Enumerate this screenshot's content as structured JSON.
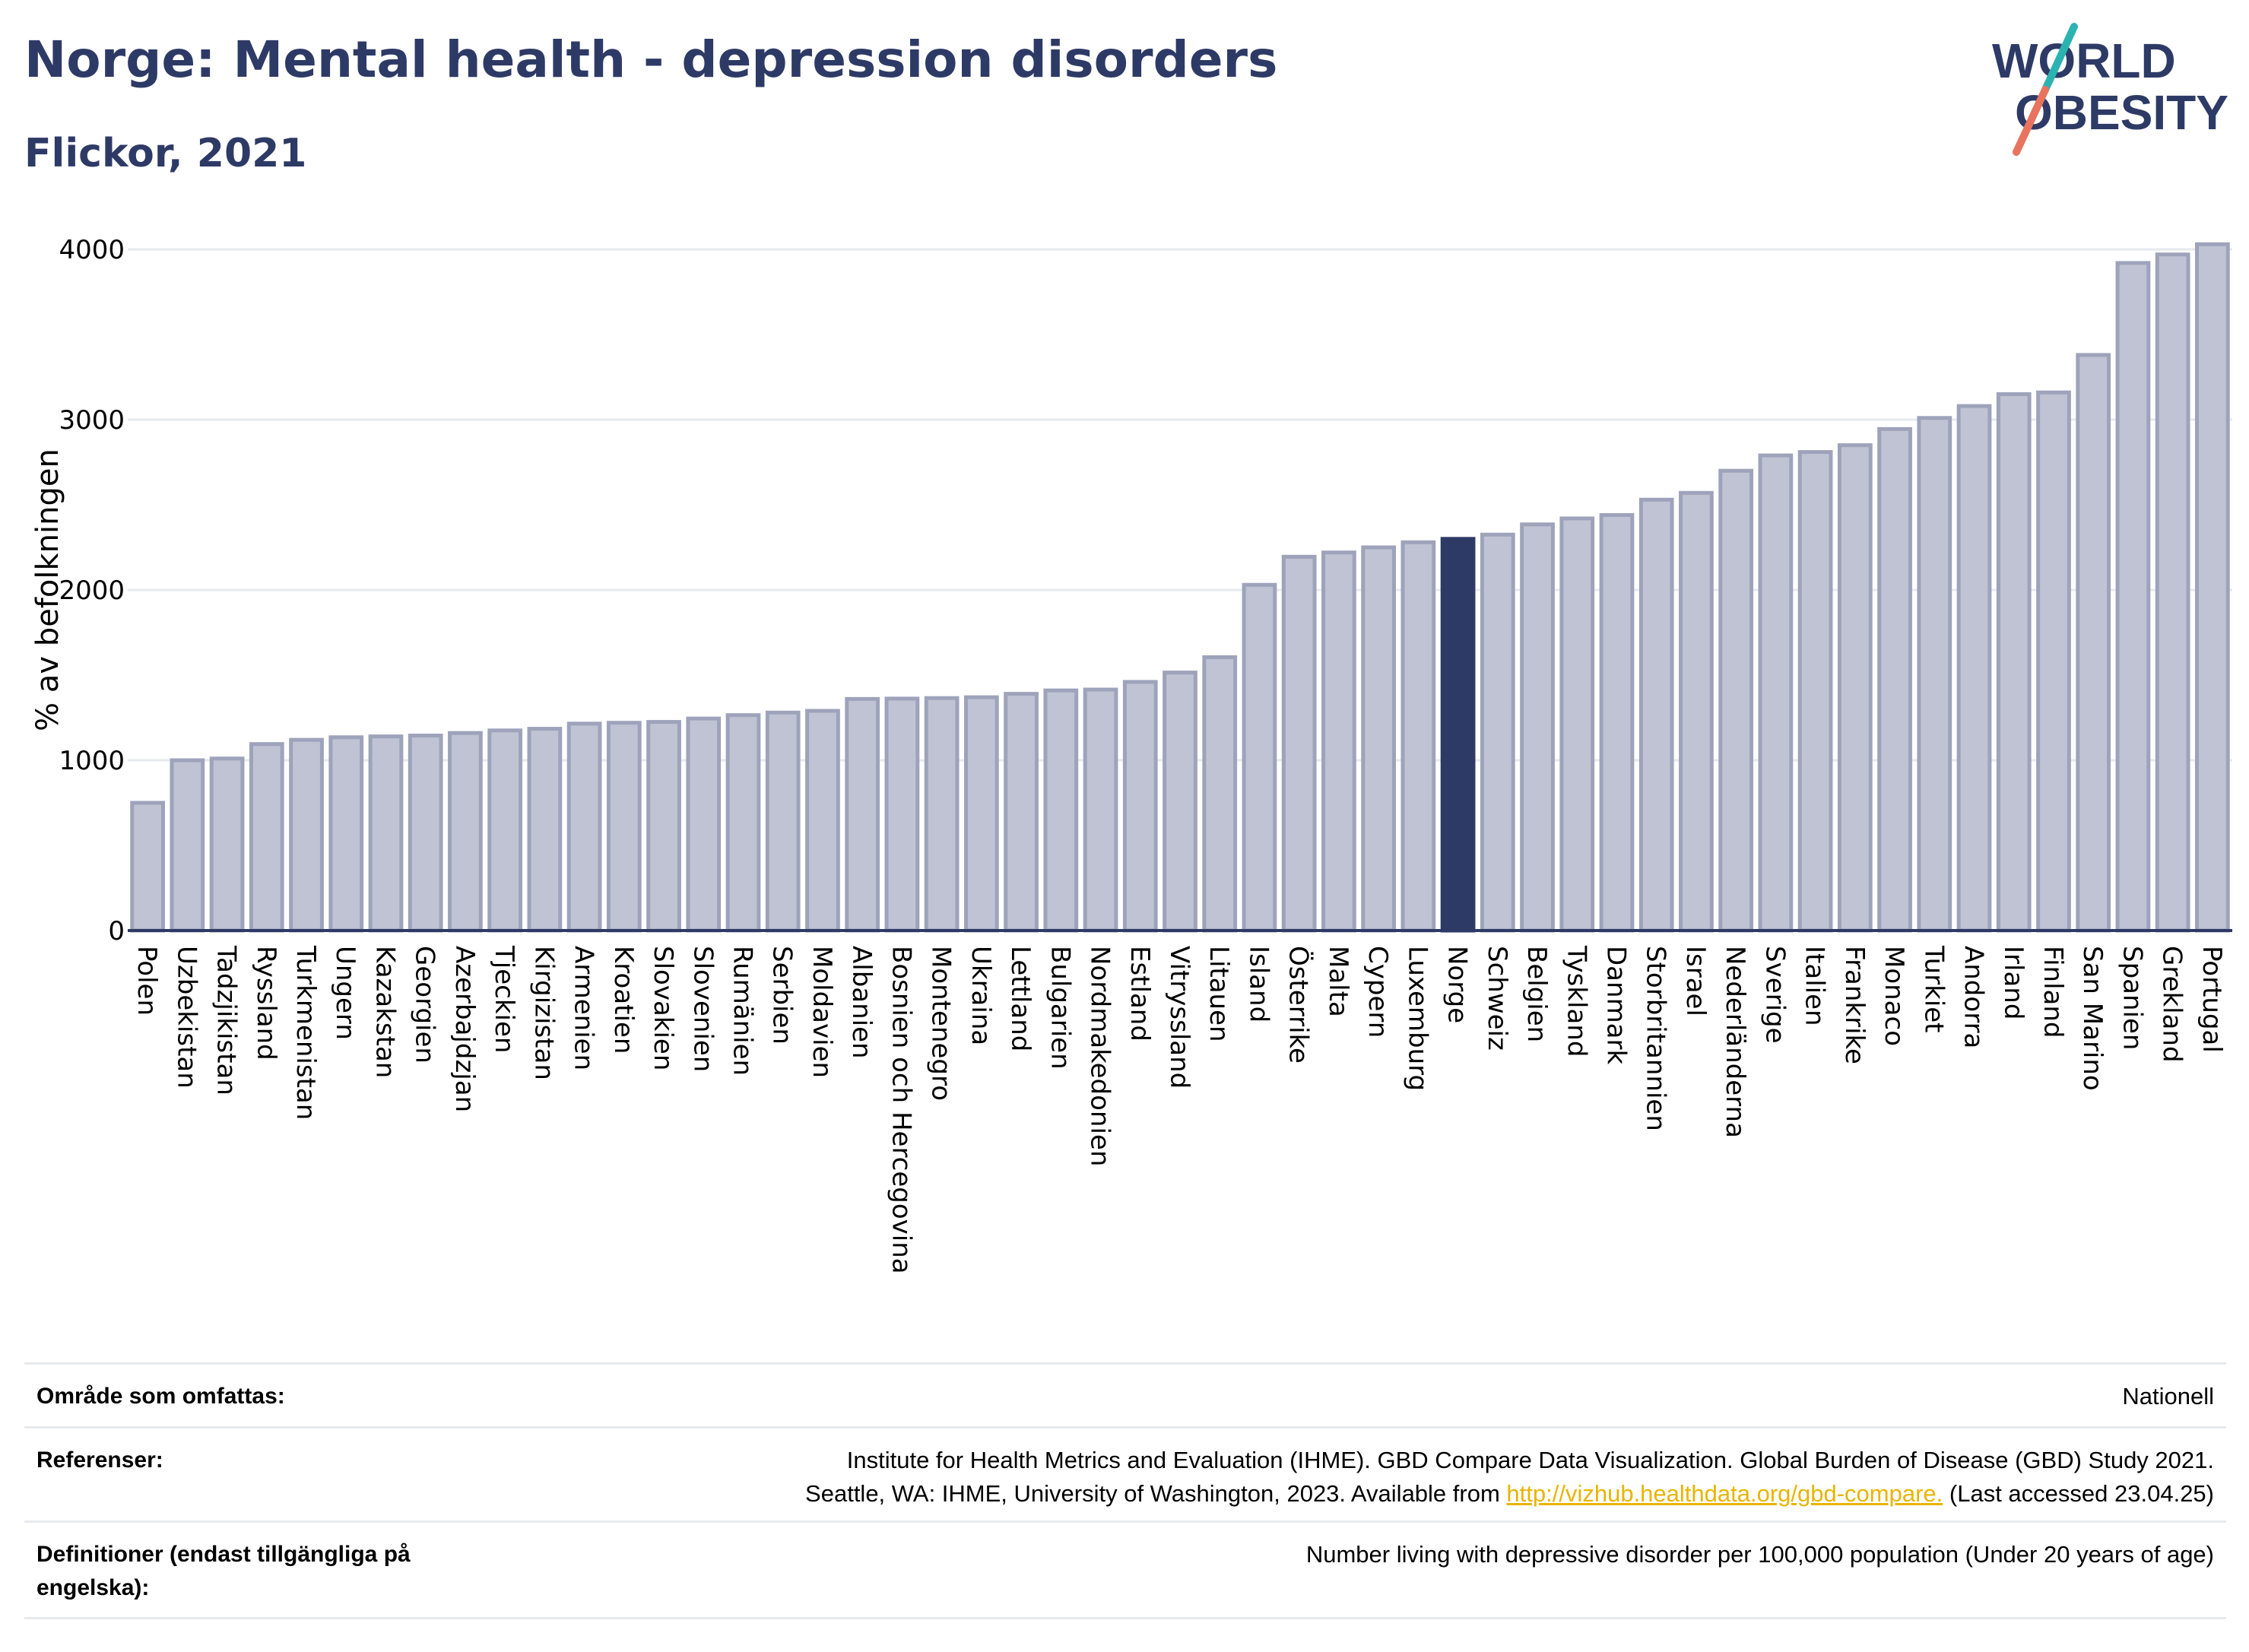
{
  "header": {
    "title": "Norge: Mental health - depression disorders",
    "subtitle": "Flickor, 2021",
    "logo_line1": "WORLD",
    "logo_line2": "OBESITY"
  },
  "colors": {
    "title": "#2e3a66",
    "bar": "#bfc3d3",
    "bar_stroke": "#9ea3bb",
    "highlight": "#2e3a66",
    "grid": "#e6eaee",
    "link": "#e9b400",
    "logo_teal": "#2bb3b1",
    "logo_coral": "#e8735f"
  },
  "chart_data": {
    "type": "bar",
    "title": "Norge: Mental health - depression disorders",
    "subtitle": "Flickor, 2021",
    "ylabel": "% av befolkningen",
    "xlabel": "",
    "ylim": [
      0,
      4000
    ],
    "yticks": [
      0,
      1000,
      2000,
      3000,
      4000
    ],
    "grid": true,
    "highlight": "Norge",
    "categories": [
      "Polen",
      "Uzbekistan",
      "Tadzjikistan",
      "Ryssland",
      "Turkmenistan",
      "Ungern",
      "Kazakstan",
      "Georgien",
      "Azerbajdzjan",
      "Tjeckien",
      "Kirgizistan",
      "Armenien",
      "Kroatien",
      "Slovakien",
      "Slovenien",
      "Rumänien",
      "Serbien",
      "Moldavien",
      "Albanien",
      "Bosnien och Hercegovina",
      "Montenegro",
      "Ukraina",
      "Lettland",
      "Bulgarien",
      "Nordmakedonien",
      "Estland",
      "Vitryssland",
      "Litauen",
      "Island",
      "Österrike",
      "Malta",
      "Cypern",
      "Luxemburg",
      "Norge",
      "Schweiz",
      "Belgien",
      "Tyskland",
      "Danmark",
      "Storbritannien",
      "Israel",
      "Nederländerna",
      "Sverige",
      "Italien",
      "Frankrike",
      "Monaco",
      "Turkiet",
      "Andorra",
      "Irland",
      "Finland",
      "San Marino",
      "Spanien",
      "Grekland",
      "Portugal"
    ],
    "values": [
      750,
      1000,
      1010,
      1095,
      1120,
      1135,
      1140,
      1145,
      1160,
      1175,
      1185,
      1215,
      1220,
      1225,
      1245,
      1265,
      1280,
      1290,
      1360,
      1362,
      1365,
      1370,
      1390,
      1410,
      1415,
      1460,
      1515,
      1605,
      2030,
      2195,
      2220,
      2250,
      2280,
      2300,
      2325,
      2385,
      2420,
      2440,
      2530,
      2570,
      2700,
      2790,
      2810,
      2850,
      2945,
      3010,
      3080,
      3150,
      3160,
      3380,
      3920,
      3970,
      4030
    ]
  },
  "footer": {
    "rows": [
      {
        "label": "Område som omfattas:",
        "value": "Nationell"
      },
      {
        "label": "Referenser:",
        "value_line1": "Institute for Health Metrics and Evaluation (IHME). GBD Compare Data Visualization. Global Burden of Disease (GBD) Study 2021.",
        "value_line2_pre": "Seattle, WA: IHME, University of Washington, 2023. Available from ",
        "link": "http://vizhub.healthdata.org/gbd-compare.",
        "value_line2_post": " (Last accessed 23.04.25)"
      },
      {
        "label_line1": "Definitioner (endast tillgängliga på",
        "label_line2": "engelska):",
        "value": "Number living with depressive disorder per 100,000 population (Under 20 years of age)"
      }
    ]
  }
}
